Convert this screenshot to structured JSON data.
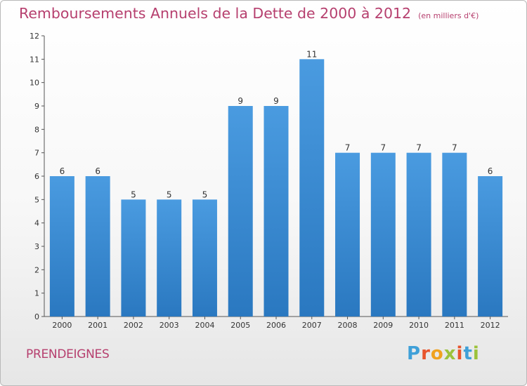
{
  "header": {
    "title": "Remboursements Annuels de la Dette de 2000 à 2012",
    "subtitle": "(en milliers d'€)"
  },
  "footer": {
    "commune": "PRENDEIGNES",
    "logo_text": "Proxiti",
    "logo_colors": [
      "#3fa0d8",
      "#e8542c",
      "#f0a21f",
      "#9cc23b",
      "#e8542c",
      "#3fa0d8",
      "#9cc23b"
    ]
  },
  "chart_data": {
    "type": "bar",
    "title": "Remboursements Annuels de la Dette de 2000 à 2012",
    "subtitle": "(en milliers d'€)",
    "categories": [
      "2000",
      "2001",
      "2002",
      "2003",
      "2004",
      "2005",
      "2006",
      "2007",
      "2008",
      "2009",
      "2010",
      "2011",
      "2012"
    ],
    "values": [
      6,
      6,
      5,
      5,
      5,
      9,
      9,
      11,
      7,
      7,
      7,
      7,
      6
    ],
    "ylim": [
      0,
      12
    ],
    "yticks": [
      0,
      1,
      2,
      3,
      4,
      5,
      6,
      7,
      8,
      9,
      10,
      11,
      12
    ],
    "grid": false,
    "bar_color": "#4a9be0",
    "bar_color_dark": "#2a78c0"
  }
}
